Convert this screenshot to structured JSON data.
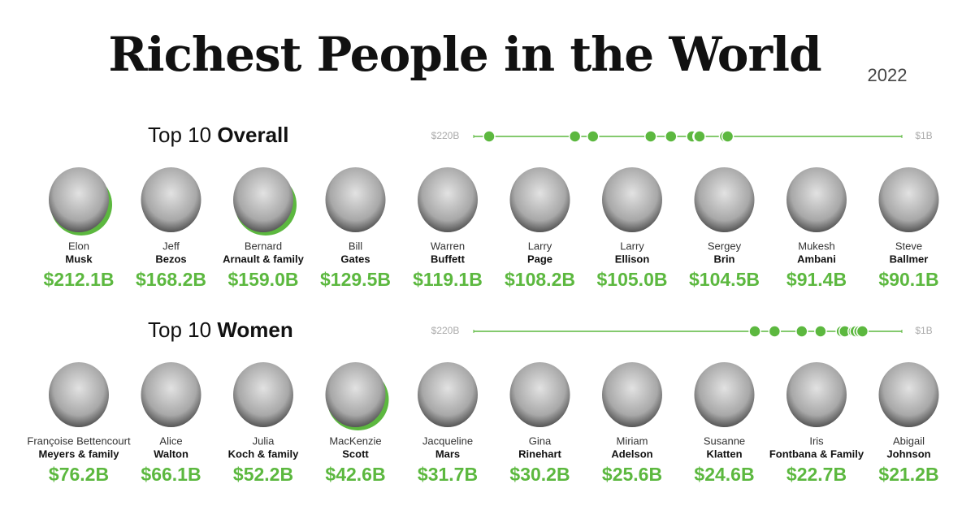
{
  "title": "Richest People in the World",
  "year": "2022",
  "sections": [
    {
      "heading_light": "Top 10",
      "heading_bold": "Overall",
      "xlim": [
        220,
        1
      ],
      "xticks": [
        {
          "value": 220,
          "label": "$220B"
        },
        {
          "value": 1,
          "label": "$1B"
        }
      ],
      "color": "#5cb83f",
      "first_names": [
        "Elon",
        "Jeff",
        "Bernard",
        "Bill",
        "Warren",
        "Larry",
        "Larry",
        "Sergey",
        "Mukesh",
        "Steve"
      ],
      "last_names": [
        "Musk",
        "Bezos",
        "Arnault & family",
        "Gates",
        "Buffett",
        "Page",
        "Ellison",
        "Brin",
        "Ambani",
        "Ballmer"
      ],
      "values": [
        212.1,
        168.2,
        159.0,
        129.5,
        119.1,
        108.2,
        105.0,
        104.5,
        91.4,
        90.1
      ],
      "value_labels": [
        "$212.1B",
        "$168.2B",
        "$159.0B",
        "$129.5B",
        "$119.1B",
        "$108.2B",
        "$105.0B",
        "$104.5B",
        "$91.4B",
        "$90.1B"
      ],
      "highlight": [
        true,
        false,
        true,
        false,
        false,
        false,
        false,
        false,
        false,
        false
      ]
    },
    {
      "heading_light": "Top 10",
      "heading_bold": "Women",
      "xlim": [
        220,
        1
      ],
      "xticks": [
        {
          "value": 220,
          "label": "$220B"
        },
        {
          "value": 1,
          "label": "$1B"
        }
      ],
      "color": "#5cb83f",
      "first_names": [
        "Françoise Bettencourt",
        "Alice",
        "Julia",
        "MacKenzie",
        "Jacqueline",
        "Gina",
        "Miriam",
        "Susanne",
        "Iris",
        "Abigail"
      ],
      "last_names": [
        "Meyers & family",
        "Walton",
        "Koch & family",
        "Scott",
        "Mars",
        "Rinehart",
        "Adelson",
        "Klatten",
        "Fontbana & Family",
        "Johnson"
      ],
      "values": [
        76.2,
        66.1,
        52.2,
        42.6,
        31.7,
        30.2,
        25.6,
        24.6,
        22.7,
        21.2
      ],
      "value_labels": [
        "$76.2B",
        "$66.1B",
        "$52.2B",
        "$42.6B",
        "$31.7B",
        "$30.2B",
        "$25.6B",
        "$24.6B",
        "$22.7B",
        "$21.2B"
      ],
      "highlight": [
        false,
        false,
        false,
        true,
        false,
        false,
        false,
        false,
        false,
        false
      ]
    }
  ]
}
